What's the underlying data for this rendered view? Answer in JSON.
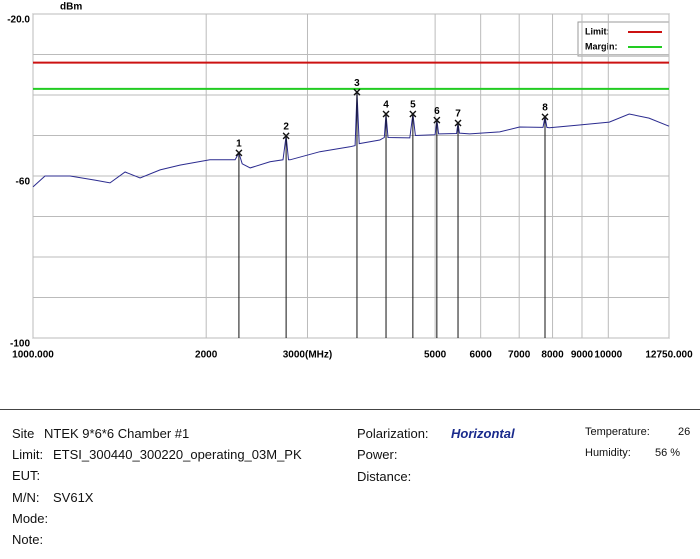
{
  "chart_data": {
    "type": "line",
    "y_unit": "dBm",
    "xlog": true,
    "xlim": [
      1000,
      12750
    ],
    "ylim": [
      -100,
      -20
    ],
    "xticks": [
      {
        "value": 1000,
        "label": "1000.000"
      },
      2000,
      {
        "value": 3000,
        "label": "3000(MHz)"
      },
      5000,
      6000,
      7000,
      8000,
      9000,
      10000,
      {
        "value": 12750,
        "label": "12750.000"
      }
    ],
    "yticks": [
      {
        "value": -20,
        "label": "-20.0"
      },
      -60,
      -100
    ],
    "ygrid": [
      -30,
      -40,
      -50,
      -60,
      -70,
      -80,
      -90
    ],
    "grid": true,
    "legend": "top-right",
    "series": [
      {
        "color": "#2b2b8f",
        "x": [
          1000,
          1049,
          1160,
          1281,
          1361,
          1446,
          1535,
          1663,
          1800,
          2030,
          2245,
          2280,
          2310,
          2385,
          2582,
          2720,
          2754,
          2780,
          2798,
          3153,
          3555,
          3630,
          3657,
          3690,
          4007,
          4080,
          4108,
          4140,
          4518,
          4574,
          4620,
          5000,
          5035,
          5070,
          5094,
          5450,
          5480,
          5510,
          5743,
          6474,
          7011,
          7700,
          7762,
          7820,
          7900,
          8907,
          10041,
          10872,
          11770,
          12750
        ],
        "values": [
          -62.7,
          -60,
          -60,
          -61,
          -61.7,
          -59,
          -60.5,
          -58.5,
          -57.3,
          -56,
          -56,
          -54.3,
          -57,
          -58,
          -56.5,
          -56,
          -50.1,
          -56,
          -56,
          -54,
          -52.8,
          -52.5,
          -39.3,
          -52,
          -51.1,
          -50.5,
          -44.7,
          -50.5,
          -50.6,
          -44.7,
          -50,
          -49.8,
          -46.2,
          -49.6,
          -49.6,
          -49.5,
          -46.9,
          -49.4,
          -49.6,
          -49.1,
          -47.9,
          -48,
          -45.4,
          -48,
          -48.1,
          -47.4,
          -46.7,
          -44.7,
          -45.7,
          -47.7
        ]
      },
      {
        "name": "Limit:",
        "color": "#cc1111",
        "x": [
          1000,
          12750
        ],
        "values": [
          -32,
          -32
        ]
      },
      {
        "name": "Margin:",
        "color": "#22cc22",
        "x": [
          1000,
          12750
        ],
        "values": [
          -38.5,
          -38.5
        ]
      }
    ],
    "markers": [
      {
        "label": "1",
        "x": 2280,
        "value": -54.3
      },
      {
        "label": "2",
        "x": 2754,
        "value": -50.1
      },
      {
        "label": "3",
        "x": 3657,
        "value": -39.3
      },
      {
        "label": "4",
        "x": 4108,
        "value": -44.7
      },
      {
        "label": "5",
        "x": 4574,
        "value": -44.7
      },
      {
        "label": "6",
        "x": 5035,
        "value": -46.2
      },
      {
        "label": "7",
        "x": 5480,
        "value": -46.9
      },
      {
        "label": "8",
        "x": 7762,
        "value": -45.4
      }
    ]
  },
  "info": {
    "site_label": "Site",
    "site": "NTEK 9*6*6 Chamber #1",
    "limit_label": "Limit:",
    "limit": "ETSI_300440_300220_operating_03M_PK",
    "eut_label": "EUT:",
    "mn_label": "M/N:",
    "mn": "SV61X",
    "mode_label": "Mode:",
    "note_label": "Note:",
    "polarization_label": "Polarization:",
    "polarization": "Horizontal",
    "power_label": "Power:",
    "distance_label": "Distance:",
    "temperature_label": "Temperature:",
    "temperature": "26",
    "humidity_label": "Humidity:",
    "humidity": "56 %"
  }
}
